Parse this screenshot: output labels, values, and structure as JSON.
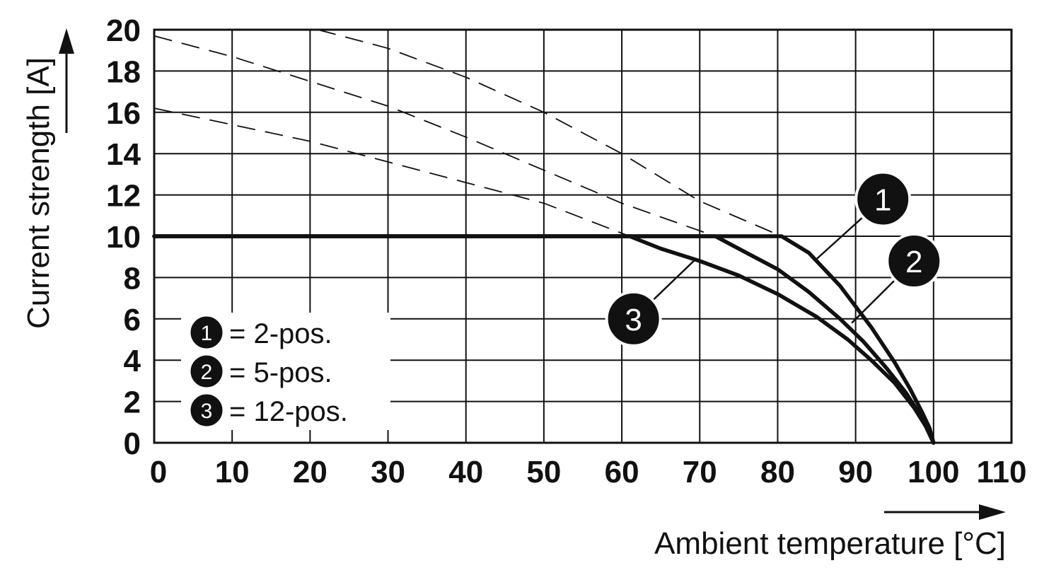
{
  "chart_data": {
    "type": "line",
    "xlabel": "Ambient temperature [°C]",
    "ylabel": "Current strength [A]",
    "xlim": [
      0,
      110
    ],
    "ylim": [
      0,
      20
    ],
    "x_ticks": [
      "0",
      "10",
      "20",
      "30",
      "40",
      "50",
      "60",
      "70",
      "80",
      "90",
      "100",
      "110"
    ],
    "y_ticks": [
      "0",
      "2",
      "4",
      "6",
      "8",
      "10",
      "12",
      "14",
      "16",
      "18",
      "20"
    ],
    "grid": true,
    "legend_position": "bottom-left",
    "legend": [
      {
        "marker": "1",
        "text": "= 2-pos."
      },
      {
        "marker": "2",
        "text": "= 5-pos."
      },
      {
        "marker": "3",
        "text": "= 12-pos."
      }
    ],
    "series": [
      {
        "marker": "1",
        "style": "solid",
        "points": [
          [
            0,
            10
          ],
          [
            80.5,
            10
          ],
          [
            84,
            9.2
          ],
          [
            88,
            7.6
          ],
          [
            92,
            5.6
          ],
          [
            95,
            3.9
          ],
          [
            97,
            2.6
          ],
          [
            98.5,
            1.5
          ],
          [
            99.5,
            0.7
          ],
          [
            100,
            0
          ]
        ]
      },
      {
        "marker": "2",
        "style": "solid",
        "points": [
          [
            0,
            10
          ],
          [
            72,
            10
          ],
          [
            76,
            9.2
          ],
          [
            80,
            8.4
          ],
          [
            84,
            7.3
          ],
          [
            88,
            6.0
          ],
          [
            91,
            4.9
          ],
          [
            94,
            3.6
          ],
          [
            96.5,
            2.4
          ],
          [
            98.5,
            1.2
          ],
          [
            100,
            0
          ]
        ]
      },
      {
        "marker": "3",
        "style": "solid",
        "points": [
          [
            0,
            10
          ],
          [
            61,
            10
          ],
          [
            65,
            9.4
          ],
          [
            70,
            8.8
          ],
          [
            75,
            8.1
          ],
          [
            80,
            7.2
          ],
          [
            85,
            6.1
          ],
          [
            89,
            5.0
          ],
          [
            92,
            4.0
          ],
          [
            95,
            2.9
          ],
          [
            97.5,
            1.7
          ],
          [
            99,
            0.8
          ],
          [
            100,
            0
          ]
        ]
      },
      {
        "marker": "1",
        "style": "dashed",
        "points": [
          [
            21,
            20
          ],
          [
            30,
            19.1
          ],
          [
            40,
            17.7
          ],
          [
            50,
            16.0
          ],
          [
            60,
            14.0
          ],
          [
            70,
            11.7
          ],
          [
            80.5,
            10
          ]
        ]
      },
      {
        "marker": "2",
        "style": "dashed",
        "points": [
          [
            0,
            19.7
          ],
          [
            10,
            18.7
          ],
          [
            20,
            17.5
          ],
          [
            30,
            16.3
          ],
          [
            40,
            14.8
          ],
          [
            50,
            13.2
          ],
          [
            60,
            11.6
          ],
          [
            72,
            10
          ]
        ]
      },
      {
        "marker": "3",
        "style": "dashed",
        "points": [
          [
            0,
            16.2
          ],
          [
            10,
            15.4
          ],
          [
            20,
            14.6
          ],
          [
            30,
            13.6
          ],
          [
            40,
            12.6
          ],
          [
            50,
            11.6
          ],
          [
            61,
            10
          ]
        ]
      }
    ],
    "callouts": [
      {
        "marker": "1",
        "badge": [
          93.5,
          11.8
        ],
        "target": [
          85,
          8.9
        ]
      },
      {
        "marker": "2",
        "badge": [
          97.5,
          8.8
        ],
        "target": [
          89.5,
          5.8
        ]
      },
      {
        "marker": "3",
        "badge": [
          61.5,
          6.0
        ],
        "target": [
          69.5,
          8.9
        ]
      }
    ]
  },
  "colors": {
    "line": "#111111",
    "grid": "#111111",
    "badge_fill": "#111111",
    "badge_text": "#ffffff",
    "background": "#ffffff"
  }
}
